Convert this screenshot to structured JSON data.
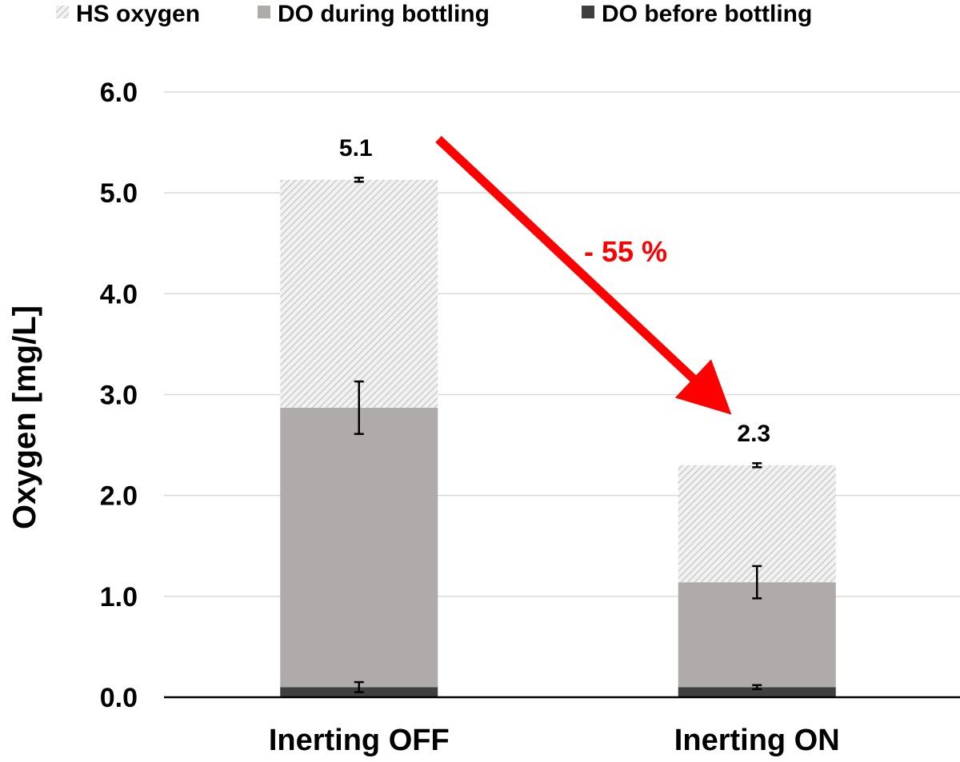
{
  "chart_data": {
    "type": "bar",
    "stacked": true,
    "categories": [
      "Inerting OFF",
      "Inerting ON"
    ],
    "series": [
      {
        "name": "DO before bottling",
        "values": [
          0.1,
          0.1
        ],
        "errors": [
          0.05,
          0.02
        ],
        "color": "#3f3f3f",
        "pattern": "solid"
      },
      {
        "name": "DO during bottling",
        "values": [
          2.77,
          1.04
        ],
        "errors": [
          0.26,
          0.16
        ],
        "color": "#afabab",
        "pattern": "solid"
      },
      {
        "name": "HS oxygen",
        "values": [
          2.26,
          1.16
        ],
        "errors": [
          0.02,
          0.02
        ],
        "color": "#d9d9d9",
        "pattern": "hatched"
      }
    ],
    "totals": [
      "5.1",
      "2.3"
    ],
    "ylabel": "Oxygen [mg/L]",
    "xlabel": "",
    "ylim": [
      0,
      6
    ],
    "yticks": [
      "0.0",
      "1.0",
      "2.0",
      "3.0",
      "4.0",
      "5.0",
      "6.0"
    ],
    "grid": true,
    "legend_position": "top",
    "legend_order": [
      "HS oxygen",
      "DO during bottling",
      "DO before bottling"
    ],
    "annotation": {
      "text": "- 55 %",
      "color": "#ff0000"
    }
  }
}
